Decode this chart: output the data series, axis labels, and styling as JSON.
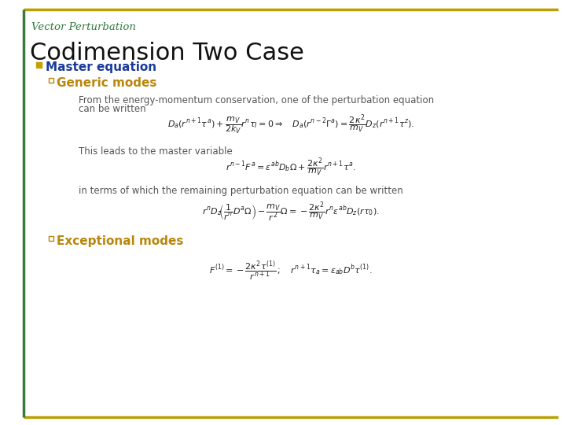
{
  "background_color": "#ffffff",
  "border_color_gold": "#b8a000",
  "border_color_green": "#3a7a3a",
  "title_text": "Vector Perturbation",
  "title_color": "#2e7a3e",
  "title_fontsize": 9.5,
  "heading_text": "Codimension Two Case",
  "heading_color": "#111111",
  "heading_fontsize": 22,
  "bullet_color": "#c8a000",
  "master_eq_text": "Master equation",
  "master_eq_color": "#1a3a9a",
  "master_eq_fontsize": 11,
  "generic_modes_text": "Generic modes",
  "generic_modes_color": "#b8860b",
  "generic_modes_fontsize": 11,
  "body_color": "#555555",
  "body_fontsize": 8.5,
  "exceptional_modes_text": "Exceptional modes",
  "exceptional_modes_color": "#b8860b",
  "exceptional_modes_fontsize": 11,
  "eq_fontsize": 8.0,
  "text_from_energy": "From the energy-momentum conservation, one of the perturbation equation",
  "text_can_be_written": "can be written",
  "text_leads": "This leads to the master variable",
  "text_in_terms": "in terms of which the remaining perturbation equation can be written"
}
